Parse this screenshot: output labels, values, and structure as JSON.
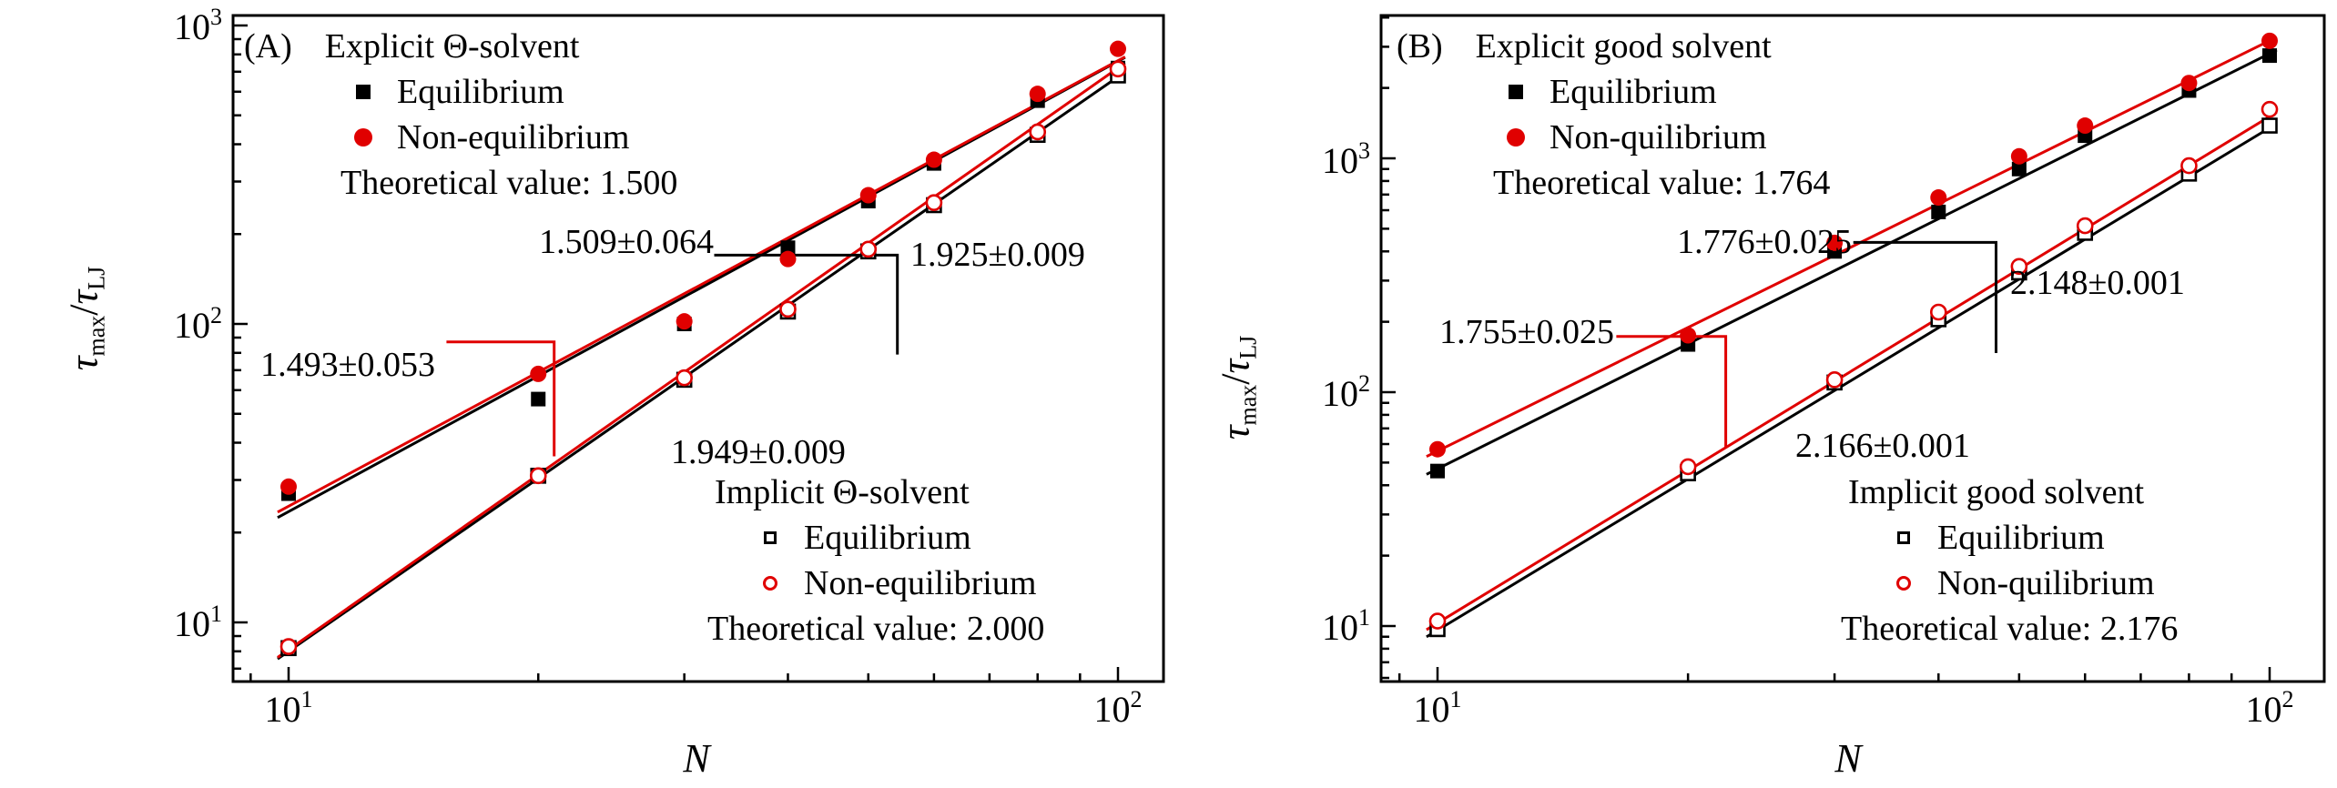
{
  "colors": {
    "black": "#000000",
    "red": "#e00000",
    "background": "#ffffff"
  },
  "chart_data": [
    {
      "type": "scatter",
      "panel_tag": "(A)",
      "xlabel": "N",
      "ylabel": {
        "sym1": "τ",
        "sub1": "max",
        "sep": "/",
        "sym2": "τ",
        "sub2": "LJ"
      },
      "xscale": "log",
      "yscale": "log",
      "xlim": [
        8.6,
        114
      ],
      "ylim": [
        6.3,
        1080
      ],
      "xticks": [
        {
          "value": 10,
          "base": "10",
          "exp": "1"
        },
        {
          "value": 100,
          "base": "10",
          "exp": "2"
        }
      ],
      "yticks": [
        {
          "value": 1000,
          "base": "10",
          "exp": "3"
        },
        {
          "value": 100,
          "base": "10",
          "exp": "2"
        },
        {
          "value": 10,
          "base": "10",
          "exp": "1"
        }
      ],
      "legend_top": {
        "title": "Explicit Θ-solvent",
        "items": [
          {
            "label": "Equilibrium",
            "marker": "square-filled",
            "color": "#000000"
          },
          {
            "label": "Non-equilibrium",
            "marker": "circle-filled",
            "color": "#e00000"
          }
        ],
        "theory_label": "Theoretical value: 1.500"
      },
      "legend_bottom": {
        "title": "Implicit Θ-solvent",
        "items": [
          {
            "label": "Equilibrium",
            "marker": "square-open",
            "color": "#000000"
          },
          {
            "label": "Non-equilibrium",
            "marker": "circle-open",
            "color": "#e00000"
          }
        ],
        "theory_label": "Theoretical value: 2.000"
      },
      "series": [
        {
          "name": "explicit-equilibrium",
          "marker": "square-filled",
          "color": "#000000",
          "x": [
            10,
            20,
            30,
            40,
            50,
            60,
            80,
            100
          ],
          "y": [
            27,
            56,
            100,
            180,
            258,
            345,
            560,
            720
          ]
        },
        {
          "name": "explicit-non-equilibrium",
          "marker": "circle-filled",
          "color": "#e00000",
          "x": [
            10,
            20,
            30,
            40,
            50,
            60,
            80,
            100
          ],
          "y": [
            28.5,
            68,
            102,
            165,
            270,
            355,
            590,
            835
          ]
        },
        {
          "name": "implicit-equilibrium",
          "marker": "square-open",
          "color": "#000000",
          "x": [
            10,
            20,
            30,
            40,
            50,
            60,
            80,
            100
          ],
          "y": [
            8.2,
            31,
            65,
            110,
            175,
            250,
            430,
            680
          ]
        },
        {
          "name": "implicit-non-equilibrium",
          "marker": "circle-open",
          "color": "#e00000",
          "x": [
            10,
            20,
            30,
            40,
            50,
            60,
            80,
            100
          ],
          "y": [
            8.3,
            31,
            66,
            112,
            178,
            255,
            440,
            715
          ]
        }
      ],
      "fits": [
        {
          "series": "explicit-equilibrium",
          "label": "1.509±0.064",
          "slope": 1.509,
          "error": 0.064,
          "y_at_10": 23.5,
          "color": "#000000"
        },
        {
          "series": "explicit-non-equilibrium",
          "label": "1.493±0.053",
          "slope": 1.493,
          "error": 0.053,
          "y_at_10": 24.5,
          "color": "#e00000"
        },
        {
          "series": "implicit-equilibrium",
          "label": "1.925±0.009",
          "slope": 1.925,
          "error": 0.009,
          "y_at_10": 8.0,
          "color": "#000000"
        },
        {
          "series": "implicit-non-equilibrium",
          "label": "1.949±0.009",
          "slope": 1.949,
          "error": 0.009,
          "y_at_10": 8.1,
          "color": "#e00000"
        }
      ],
      "brackets": [
        {
          "color": "#000000",
          "points": [
            [
              32.6,
              170
            ],
            [
              54.2,
              170
            ],
            [
              54.2,
              79
            ]
          ]
        },
        {
          "color": "#e00000",
          "points": [
            [
              15.5,
              87
            ],
            [
              20.9,
              87
            ],
            [
              20.9,
              36
            ]
          ]
        }
      ]
    },
    {
      "type": "scatter",
      "panel_tag": "(B)",
      "xlabel": "N",
      "ylabel": {
        "sym1": "τ",
        "sub1": "max",
        "sep": "/",
        "sym2": "τ",
        "sub2": "LJ"
      },
      "xscale": "log",
      "yscale": "log",
      "xlim": [
        8.6,
        116
      ],
      "ylim": [
        5.8,
        4070
      ],
      "xticks": [
        {
          "value": 10,
          "base": "10",
          "exp": "1"
        },
        {
          "value": 100,
          "base": "10",
          "exp": "2"
        }
      ],
      "yticks": [
        {
          "value": 1000,
          "base": "10",
          "exp": "3"
        },
        {
          "value": 100,
          "base": "10",
          "exp": "2"
        },
        {
          "value": 10,
          "base": "10",
          "exp": "1"
        }
      ],
      "legend_top": {
        "title": "Explicit good solvent",
        "items": [
          {
            "label": "Equilibrium",
            "marker": "square-filled",
            "color": "#000000"
          },
          {
            "label": "Non-quilibrium",
            "marker": "circle-filled",
            "color": "#e00000"
          }
        ],
        "theory_label": "Theoretical value: 1.764"
      },
      "legend_bottom": {
        "title": "Implicit good solvent",
        "items": [
          {
            "label": "Equilibrium",
            "marker": "square-open",
            "color": "#000000"
          },
          {
            "label": "Non-quilibrium",
            "marker": "circle-open",
            "color": "#e00000"
          }
        ],
        "theory_label": "Theoretical value: 2.176"
      },
      "series": [
        {
          "name": "explicit-equilibrium",
          "marker": "square-filled",
          "color": "#000000",
          "x": [
            10,
            20,
            30,
            40,
            50,
            60,
            80,
            100
          ],
          "y": [
            46,
            160,
            400,
            590,
            900,
            1250,
            1950,
            2750
          ]
        },
        {
          "name": "explicit-non-equilibrium",
          "marker": "circle-filled",
          "color": "#e00000",
          "x": [
            10,
            20,
            30,
            40,
            50,
            60,
            80,
            100
          ],
          "y": [
            57,
            175,
            435,
            680,
            1020,
            1380,
            2100,
            3180
          ]
        },
        {
          "name": "implicit-equilibrium",
          "marker": "square-open",
          "color": "#000000",
          "x": [
            10,
            20,
            30,
            40,
            50,
            60,
            80,
            100
          ],
          "y": [
            9.7,
            45,
            110,
            205,
            325,
            480,
            860,
            1380
          ]
        },
        {
          "name": "implicit-non-equilibrium",
          "marker": "circle-open",
          "color": "#e00000",
          "x": [
            10,
            20,
            30,
            40,
            50,
            60,
            80,
            100
          ],
          "y": [
            10.5,
            48,
            113,
            220,
            345,
            515,
            930,
            1620
          ]
        }
      ],
      "fits": [
        {
          "series": "explicit-equilibrium",
          "label": "1.776±0.025",
          "slope": 1.776,
          "error": 0.025,
          "y_at_10": 47,
          "color": "#000000"
        },
        {
          "series": "explicit-non-equilibrium",
          "label": "1.755±0.025",
          "slope": 1.755,
          "error": 0.025,
          "y_at_10": 56,
          "color": "#e00000"
        },
        {
          "series": "implicit-equilibrium",
          "label": "2.148±0.001",
          "slope": 2.148,
          "error": 0.001,
          "y_at_10": 9.6,
          "color": "#000000"
        },
        {
          "series": "implicit-non-equilibrium",
          "label": "2.166±0.001",
          "slope": 2.166,
          "error": 0.001,
          "y_at_10": 10.3,
          "color": "#e00000"
        }
      ],
      "brackets": [
        {
          "color": "#000000",
          "points": [
            [
              31.6,
              437
            ],
            [
              46.9,
              437
            ],
            [
              46.9,
              147
            ]
          ]
        },
        {
          "color": "#e00000",
          "points": [
            [
              16.4,
              173
            ],
            [
              22.2,
              173
            ],
            [
              22.2,
              58
            ]
          ]
        }
      ]
    }
  ]
}
